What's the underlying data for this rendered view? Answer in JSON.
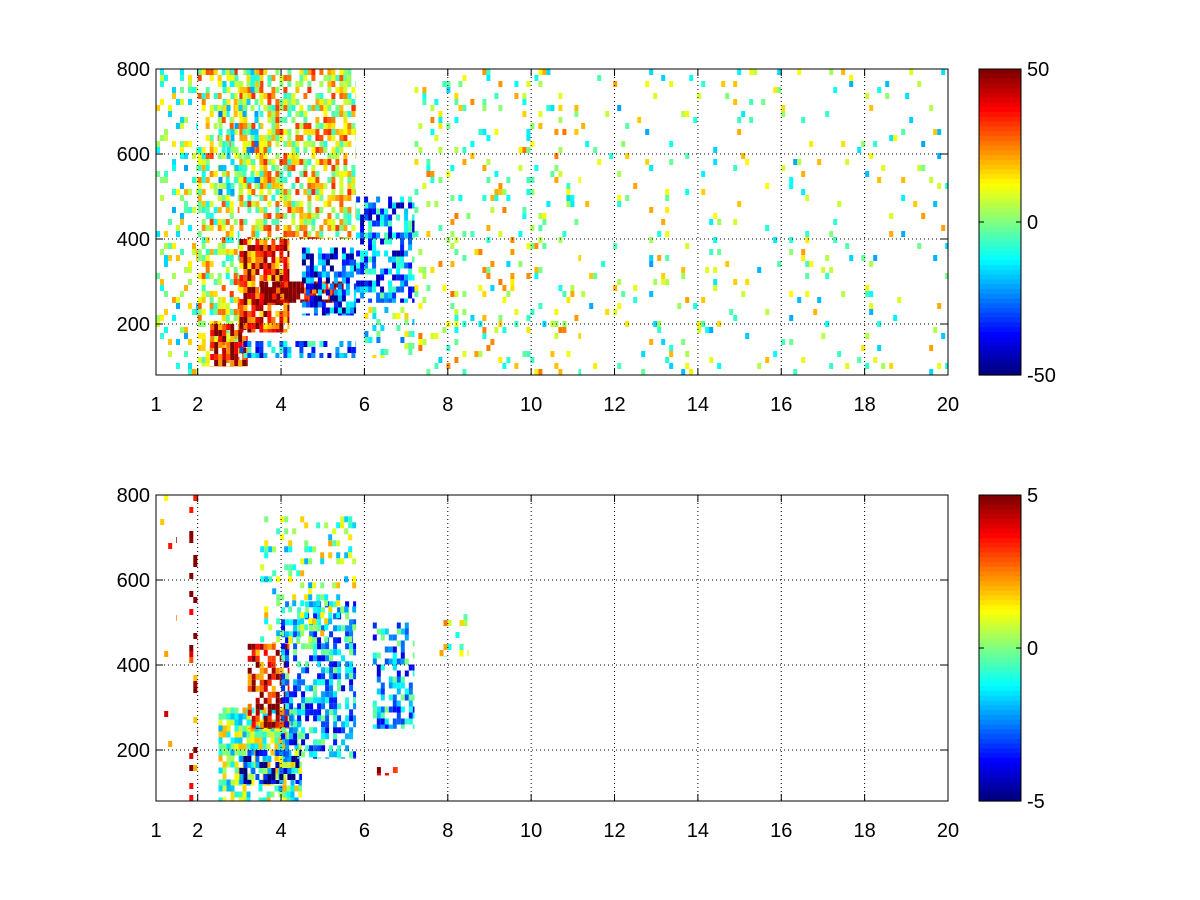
{
  "chart_data": [
    {
      "type": "heatmap",
      "title": "",
      "xlabel": "",
      "ylabel": "",
      "xlim": [
        1,
        20
      ],
      "ylim": [
        80,
        800
      ],
      "x_ticks": [
        1,
        2,
        4,
        6,
        8,
        10,
        12,
        14,
        16,
        18,
        20
      ],
      "x_tick_labels": [
        "1",
        "2",
        "4",
        "6",
        "8",
        "10",
        "12",
        "14",
        "16",
        "18",
        "20"
      ],
      "y_ticks": [
        200,
        400,
        600,
        800
      ],
      "y_tick_labels": [
        "200",
        "400",
        "600",
        "800"
      ],
      "grid": true,
      "colormap": "jet",
      "colorbar": {
        "range": [
          -50,
          50
        ],
        "ticks": [
          50,
          0,
          -50
        ],
        "tick_labels": [
          "50",
          "0",
          "-50"
        ]
      },
      "regions": [
        {
          "x": [
            1.0,
            2.0
          ],
          "y": [
            80,
            800
          ],
          "value": 0,
          "density": 0.25
        },
        {
          "x": [
            2.0,
            3.0
          ],
          "y": [
            100,
            800
          ],
          "value": 10,
          "density": 0.5
        },
        {
          "x": [
            2.3,
            3.2
          ],
          "y": [
            100,
            200
          ],
          "value": 40,
          "density": 0.85
        },
        {
          "x": [
            3.0,
            4.2
          ],
          "y": [
            180,
            400
          ],
          "value": 35,
          "density": 0.85
        },
        {
          "x": [
            3.5,
            5.5
          ],
          "y": [
            250,
            300
          ],
          "value": 45,
          "density": 0.8
        },
        {
          "x": [
            4.5,
            5.8
          ],
          "y": [
            220,
            380
          ],
          "value": -35,
          "density": 0.7
        },
        {
          "x": [
            3.0,
            5.8
          ],
          "y": [
            120,
            160
          ],
          "value": -25,
          "density": 0.6
        },
        {
          "x": [
            3.0,
            5.8
          ],
          "y": [
            400,
            800
          ],
          "value": 12,
          "density": 0.6
        },
        {
          "x": [
            2.5,
            3.5
          ],
          "y": [
            500,
            800
          ],
          "value": -5,
          "density": 0.4
        },
        {
          "x": [
            5.8,
            7.2
          ],
          "y": [
            250,
            500
          ],
          "value": -25,
          "density": 0.6
        },
        {
          "x": [
            6.0,
            7.2
          ],
          "y": [
            120,
            240
          ],
          "value": -5,
          "density": 0.3
        },
        {
          "x": [
            7.2,
            11.2
          ],
          "y": [
            80,
            800
          ],
          "value": 5,
          "density": 0.12
        },
        {
          "x": [
            11.2,
            20.0
          ],
          "y": [
            80,
            800
          ],
          "value": 0,
          "density": 0.05
        }
      ]
    },
    {
      "type": "heatmap",
      "title": "",
      "xlabel": "",
      "ylabel": "",
      "xlim": [
        1,
        20
      ],
      "ylim": [
        80,
        800
      ],
      "x_ticks": [
        1,
        2,
        4,
        6,
        8,
        10,
        12,
        14,
        16,
        18,
        20
      ],
      "x_tick_labels": [
        "1",
        "2",
        "4",
        "6",
        "8",
        "10",
        "12",
        "14",
        "16",
        "18",
        "20"
      ],
      "y_ticks": [
        200,
        400,
        600,
        800
      ],
      "y_tick_labels": [
        "200",
        "400",
        "600",
        "800"
      ],
      "grid": true,
      "colormap": "jet",
      "colorbar": {
        "range": [
          -5,
          5
        ],
        "ticks": [
          5,
          0,
          -5
        ],
        "tick_labels": [
          "5",
          "0",
          "-5"
        ]
      },
      "regions": [
        {
          "x": [
            1.1,
            1.5
          ],
          "y": [
            200,
            800
          ],
          "value": 3,
          "density": 0.06
        },
        {
          "x": [
            1.8,
            2.0
          ],
          "y": [
            80,
            800
          ],
          "value": 4,
          "density": 0.15
        },
        {
          "x": [
            2.5,
            4.5
          ],
          "y": [
            80,
            300
          ],
          "value": 0,
          "density": 0.75
        },
        {
          "x": [
            3.2,
            4.2
          ],
          "y": [
            250,
            450
          ],
          "value": 4,
          "density": 0.7
        },
        {
          "x": [
            3.0,
            4.5
          ],
          "y": [
            120,
            200
          ],
          "value": -4,
          "density": 0.5
        },
        {
          "x": [
            4.0,
            5.8
          ],
          "y": [
            180,
            550
          ],
          "value": -2,
          "density": 0.55
        },
        {
          "x": [
            3.5,
            5.8
          ],
          "y": [
            450,
            750
          ],
          "value": 0,
          "density": 0.25
        },
        {
          "x": [
            6.2,
            7.2
          ],
          "y": [
            250,
            500
          ],
          "value": -2,
          "density": 0.5
        },
        {
          "x": [
            6.3,
            6.8
          ],
          "y": [
            140,
            160
          ],
          "value": 4,
          "density": 0.6
        },
        {
          "x": [
            7.8,
            8.5
          ],
          "y": [
            420,
            520
          ],
          "value": 1,
          "density": 0.25
        }
      ]
    }
  ]
}
